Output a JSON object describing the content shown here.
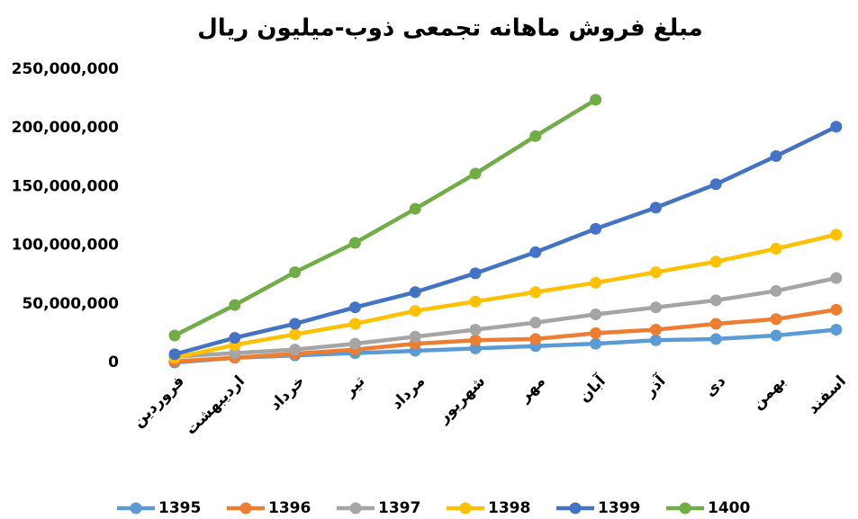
{
  "chart_data": {
    "type": "line",
    "title": "مبلغ فروش ماهانه تجمعی ذوب-میلیون ریال",
    "categories": [
      "فروردین",
      "اردیبهشت",
      "خرداد",
      "تیر",
      "مرداد",
      "شهریور",
      "مهر",
      "آبان",
      "آذر",
      "دی",
      "بهمن",
      "اسفند"
    ],
    "series": [
      {
        "name": "1395",
        "color": "#5b9bd5",
        "values": [
          0,
          4000000,
          6000000,
          8000000,
          10000000,
          12000000,
          14000000,
          16000000,
          19000000,
          20000000,
          23000000,
          28000000
        ]
      },
      {
        "name": "1396",
        "color": "#ed7d31",
        "values": [
          1000000,
          4000000,
          7500000,
          11000000,
          16000000,
          19000000,
          20000000,
          25000000,
          28000000,
          33000000,
          37000000,
          45000000
        ]
      },
      {
        "name": "1397",
        "color": "#a5a5a5",
        "values": [
          5000000,
          8000000,
          11000000,
          16000000,
          22000000,
          28000000,
          34000000,
          41000000,
          47000000,
          53000000,
          61000000,
          72000000
        ]
      },
      {
        "name": "1398",
        "color": "#ffc000",
        "values": [
          4000000,
          15000000,
          24000000,
          33000000,
          44000000,
          52000000,
          60000000,
          68000000,
          77000000,
          86000000,
          97000000,
          109000000
        ]
      },
      {
        "name": "1399",
        "color": "#4472c4",
        "values": [
          7000000,
          21000000,
          33000000,
          47000000,
          60000000,
          76000000,
          94000000,
          114000000,
          132000000,
          152000000,
          176000000,
          201000000
        ]
      },
      {
        "name": "1400",
        "color": "#70ad47",
        "values": [
          23000000,
          49000000,
          77000000,
          102000000,
          131000000,
          161000000,
          193000000,
          224000000,
          null,
          null,
          null,
          null
        ]
      }
    ],
    "ylim": [
      0,
      250000000
    ],
    "yticks": [
      {
        "value": 0,
        "label": "0"
      },
      {
        "value": 50000000,
        "label": "50,000,000"
      },
      {
        "value": 100000000,
        "label": "100,000,000"
      },
      {
        "value": 150000000,
        "label": "150,000,000"
      },
      {
        "value": 200000000,
        "label": "200,000,000"
      },
      {
        "value": 250000000,
        "label": "250,000,000"
      }
    ],
    "legend": "bottom"
  }
}
